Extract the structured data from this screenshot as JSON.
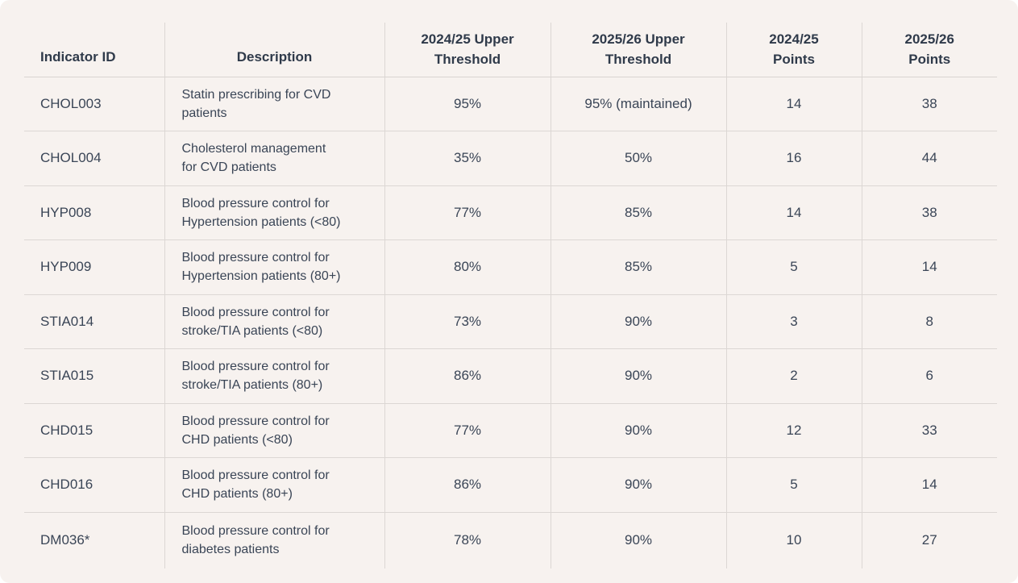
{
  "table": {
    "headers": {
      "id": "Indicator ID",
      "description": "Description",
      "upper_2425_line1": "2024/25 Upper",
      "upper_2425_line2": "Threshold",
      "upper_2526_line1": "2025/26 Upper",
      "upper_2526_line2": "Threshold",
      "points_2425_line1": "2024/25",
      "points_2425_line2": "Points",
      "points_2526_line1": "2025/26",
      "points_2526_line2": "Points"
    },
    "rows": [
      {
        "id": "CHOL003",
        "desc1": "Statin prescribing for CVD",
        "desc2": "patients",
        "upper_2425": "95%",
        "upper_2526": "95% (maintained)",
        "points_2425": "14",
        "points_2526": "38"
      },
      {
        "id": "CHOL004",
        "desc1": "Cholesterol management",
        "desc2": "for CVD patients",
        "upper_2425": "35%",
        "upper_2526": "50%",
        "points_2425": "16",
        "points_2526": "44"
      },
      {
        "id": "HYP008",
        "desc1": "Blood pressure control for",
        "desc2": "Hypertension patients (<80)",
        "upper_2425": "77%",
        "upper_2526": "85%",
        "points_2425": "14",
        "points_2526": "38"
      },
      {
        "id": "HYP009",
        "desc1": "Blood pressure control for",
        "desc2": "Hypertension patients (80+)",
        "upper_2425": "80%",
        "upper_2526": "85%",
        "points_2425": "5",
        "points_2526": "14"
      },
      {
        "id": "STIA014",
        "desc1": "Blood pressure control for",
        "desc2": "stroke/TIA patients (<80)",
        "upper_2425": "73%",
        "upper_2526": "90%",
        "points_2425": "3",
        "points_2526": "8"
      },
      {
        "id": "STIA015",
        "desc1": "Blood pressure control for",
        "desc2": "stroke/TIA patients (80+)",
        "upper_2425": "86%",
        "upper_2526": "90%",
        "points_2425": "2",
        "points_2526": "6"
      },
      {
        "id": "CHD015",
        "desc1": "Blood pressure control for",
        "desc2": "CHD patients (<80)",
        "upper_2425": "77%",
        "upper_2526": "90%",
        "points_2425": "12",
        "points_2526": "33"
      },
      {
        "id": "CHD016",
        "desc1": "Blood pressure control for",
        "desc2": "CHD patients (80+)",
        "upper_2425": "86%",
        "upper_2526": "90%",
        "points_2425": "5",
        "points_2526": "14"
      },
      {
        "id": "DM036*",
        "desc1": "Blood pressure control for",
        "desc2": "diabetes patients",
        "upper_2425": "78%",
        "upper_2526": "90%",
        "points_2425": "10",
        "points_2526": "27"
      }
    ]
  }
}
